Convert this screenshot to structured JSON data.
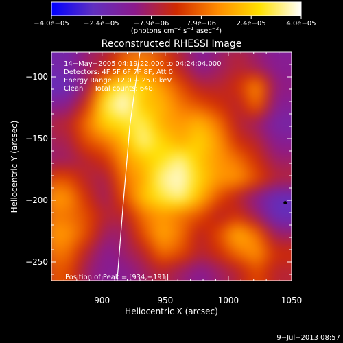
{
  "chart_data": {
    "type": "heatmap",
    "title": "Reconstructed RHESSI Image",
    "xlabel": "Heliocentric X (arcsec)",
    "ylabel": "Heliocentric Y (arcsec)",
    "xlim": [
      860,
      1050
    ],
    "ylim": [
      -265,
      -80
    ],
    "x_ticks": [
      900,
      950,
      1000,
      1050
    ],
    "x_tick_labels": [
      "900",
      "950",
      "1000",
      "1050"
    ],
    "y_ticks": [
      -100,
      -150,
      -200,
      -250
    ],
    "y_tick_labels": [
      "−100",
      "−150",
      "−200",
      "−250"
    ],
    "colorbar": {
      "min": -4e-05,
      "max": 4e-05,
      "tick_labels": [
        "−4.0e−05",
        "−2.4e−05",
        "−7.9e−06",
        "7.9e−06",
        "2.4e−05",
        "4.0e−05"
      ],
      "unit_parts": [
        "(photons cm",
        "−2",
        " s",
        "−1",
        " asec",
        "−2",
        ")"
      ],
      "colors": [
        "#0000ff",
        "#6030c0",
        "#8c1a8c",
        "#d02a00",
        "#ff8c00",
        "#ffe000",
        "#ffffff"
      ]
    },
    "annotations": [
      "14−May−2005 04:19:22.000 to 04:24:04.000",
      "Detectors: 4F 5F 6F 7F 8F, Att 0",
      "Energy Range: 12.0 − 25.0 keV",
      "Clean     Total counts: 648."
    ],
    "peak_label": "Position of Peak = [934,−191]",
    "peak": [
      934,
      -191
    ],
    "timestamp": "9−Jul−2013 08:57",
    "z_grid": {
      "x": [
        870,
        885,
        900,
        915,
        930,
        945,
        960,
        975,
        990,
        1005,
        1020,
        1035
      ],
      "y": [
        -90,
        -105,
        -120,
        -135,
        -150,
        -165,
        -180,
        -195,
        -210,
        -225,
        -240,
        -255
      ],
      "z": [
        [
          -2e-05,
          -1e-05,
          -5e-06,
          8e-06,
          1.2e-05,
          5e-06,
          -5e-06,
          -1.5e-05,
          -1e-05,
          -5e-06,
          -1e-05,
          -1.5e-05
        ],
        [
          -2.5e-05,
          -1e-05,
          2e-05,
          3.2e-05,
          2.5e-05,
          1.5e-05,
          5e-06,
          -5e-06,
          -5e-06,
          0,
          1.5e-05,
          -1.2e-05
        ],
        [
          -1.5e-05,
          0,
          3e-05,
          4e-05,
          2.2e-05,
          2e-05,
          1e-05,
          5e-06,
          0,
          -5e-06,
          1e-05,
          -1.5e-05
        ],
        [
          -5e-06,
          1e-05,
          2.5e-05,
          2.8e-05,
          3.2e-05,
          1.8e-05,
          1.5e-05,
          2e-05,
          1e-05,
          -5e-06,
          -1e-05,
          -2e-05
        ],
        [
          -8e-06,
          5e-06,
          1e-05,
          2e-05,
          3.5e-05,
          2.5e-05,
          1.8e-05,
          2.5e-05,
          1.5e-05,
          0,
          -5e-06,
          -1.5e-05
        ],
        [
          -1e-05,
          -5e-06,
          0,
          1.5e-05,
          2.2e-05,
          2.8e-05,
          3.5e-05,
          2.2e-05,
          1.5e-05,
          1e-05,
          0,
          -1e-05
        ],
        [
          5e-06,
          -5e-06,
          -8e-06,
          1e-05,
          1.8e-05,
          3.5e-05,
          3.8e-05,
          2.5e-05,
          1.5e-05,
          1.5e-05,
          5e-06,
          -5e-06
        ],
        [
          1.5e-05,
          0,
          -1e-05,
          5e-06,
          2.2e-05,
          3e-05,
          3.5e-05,
          2e-05,
          5e-06,
          -5e-06,
          -1.5e-05,
          -2.5e-05
        ],
        [
          1e-05,
          5e-06,
          -5e-06,
          -5e-06,
          1e-05,
          1.5e-05,
          1e-05,
          5e-06,
          -5e-06,
          0,
          -1e-05,
          -2.5e-05
        ],
        [
          1.5e-05,
          5e-06,
          -1e-05,
          -1e-05,
          5e-06,
          1.8e-05,
          1e-05,
          -5e-06,
          5e-06,
          2e-05,
          1e-05,
          -1e-05
        ],
        [
          1e-05,
          -5e-06,
          -1.5e-05,
          -1e-05,
          -5e-06,
          1e-05,
          5e-06,
          -5e-06,
          0,
          1e-05,
          1.5e-05,
          0
        ],
        [
          5e-06,
          -1e-05,
          -1.5e-05,
          -1.5e-05,
          -1e-05,
          -5e-06,
          -1e-05,
          -1.5e-05,
          -1e-05,
          -5e-06,
          5e-06,
          -5e-06
        ]
      ]
    },
    "limb_curve": [
      [
        930,
        -80
      ],
      [
        922,
        -140
      ],
      [
        917,
        -200
      ],
      [
        912,
        -265
      ]
    ]
  }
}
